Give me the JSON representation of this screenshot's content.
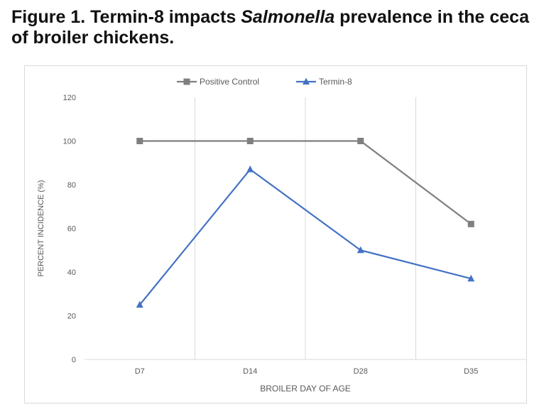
{
  "figure": {
    "title_prefix": "Figure 1. Termin-8 impacts ",
    "title_italic": "Salmonella",
    "title_suffix": " prevalence in the ceca of broiler chickens."
  },
  "chart_data": {
    "type": "line",
    "title": "",
    "categories": [
      "D7",
      "D14",
      "D28",
      "D35"
    ],
    "series": [
      {
        "name": "Positive Control",
        "values": [
          100,
          100,
          100,
          62
        ],
        "color": "#7f7f7f",
        "marker": "square"
      },
      {
        "name": "Termin-8",
        "values": [
          25,
          87,
          50,
          37
        ],
        "color": "#4472c4",
        "marker": "triangle"
      }
    ],
    "xlabel": "BROILER DAY OF AGE",
    "ylabel": "PERCENT INCIDENCE (%)",
    "ylim": [
      0,
      120
    ],
    "yticks": [
      0,
      20,
      40,
      60,
      80,
      100,
      120
    ],
    "grid": "vertical",
    "legend": "top-center"
  }
}
